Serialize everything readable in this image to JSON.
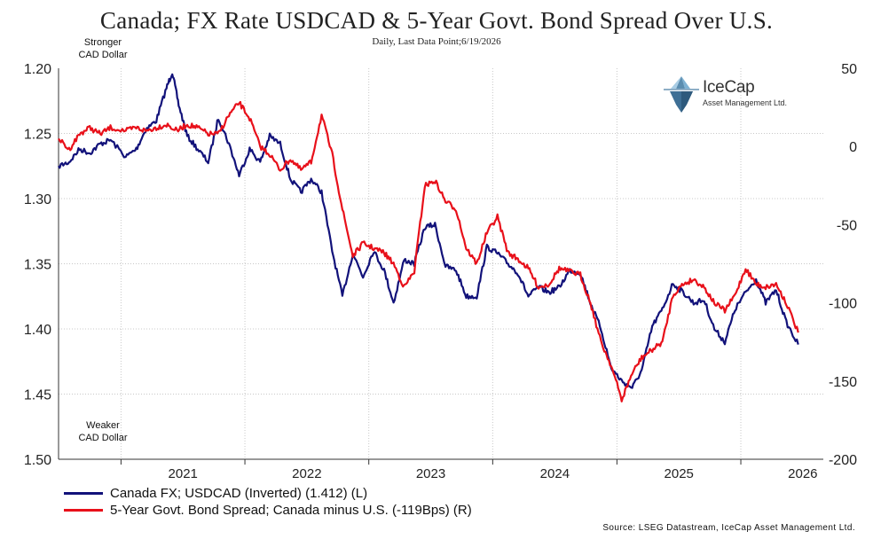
{
  "chart_data": {
    "type": "line",
    "title": "Canada; FX Rate USDCAD & 5-Year Govt. Bond Spread Over U.S.",
    "subtitle": "Daily, Last Data Point;6/19/2026",
    "annotations": {
      "top": [
        "Stronger",
        "CAD Dollar"
      ],
      "bottom": [
        "Weaker",
        "CAD Dollar"
      ]
    },
    "x_range": [
      "2020-07-01",
      "2026-09-01"
    ],
    "x_ticks": [
      {
        "label": "2021",
        "date": "2021-01-01"
      },
      {
        "label": "2022",
        "date": "2022-01-01"
      },
      {
        "label": "2023",
        "date": "2023-01-01"
      },
      {
        "label": "2024",
        "date": "2024-01-01"
      },
      {
        "label": "2025",
        "date": "2025-01-01"
      },
      {
        "label": "2026",
        "date": "2026-01-01"
      }
    ],
    "y_left": {
      "ticks": [
        "1.20",
        "1.25",
        "1.30",
        "1.35",
        "1.40",
        "1.45",
        "1.50"
      ],
      "range": [
        1.2,
        1.5
      ],
      "inverted": true
    },
    "y_right": {
      "ticks": [
        "50",
        "0",
        "-50",
        "-100",
        "-150",
        "-200"
      ],
      "range": [
        -200,
        50
      ]
    },
    "grid": true,
    "legend_placement": "bottom-left",
    "series": [
      {
        "name": "Canada FX; USDCAD (Inverted) (1.412) (L)",
        "color": "#12127a",
        "axis": "left",
        "points": [
          [
            "2020-07-01",
            1.275
          ],
          [
            "2020-08-01",
            1.272
          ],
          [
            "2020-09-01",
            1.262
          ],
          [
            "2020-10-01",
            1.265
          ],
          [
            "2020-11-01",
            1.258
          ],
          [
            "2020-12-01",
            1.255
          ],
          [
            "2021-01-15",
            1.268
          ],
          [
            "2021-02-15",
            1.262
          ],
          [
            "2021-03-15",
            1.247
          ],
          [
            "2021-04-15",
            1.24
          ],
          [
            "2021-05-15",
            1.215
          ],
          [
            "2021-06-01",
            1.203
          ],
          [
            "2021-06-20",
            1.228
          ],
          [
            "2021-07-15",
            1.252
          ],
          [
            "2021-08-15",
            1.262
          ],
          [
            "2021-09-15",
            1.272
          ],
          [
            "2021-10-15",
            1.238
          ],
          [
            "2021-11-15",
            1.258
          ],
          [
            "2021-12-15",
            1.282
          ],
          [
            "2022-01-15",
            1.262
          ],
          [
            "2022-02-15",
            1.272
          ],
          [
            "2022-03-15",
            1.252
          ],
          [
            "2022-04-15",
            1.258
          ],
          [
            "2022-05-15",
            1.285
          ],
          [
            "2022-06-15",
            1.295
          ],
          [
            "2022-07-15",
            1.285
          ],
          [
            "2022-08-15",
            1.295
          ],
          [
            "2022-09-15",
            1.34
          ],
          [
            "2022-10-15",
            1.375
          ],
          [
            "2022-11-15",
            1.342
          ],
          [
            "2022-12-15",
            1.36
          ],
          [
            "2023-01-15",
            1.34
          ],
          [
            "2023-02-15",
            1.355
          ],
          [
            "2023-03-15",
            1.38
          ],
          [
            "2023-04-15",
            1.347
          ],
          [
            "2023-05-15",
            1.35
          ],
          [
            "2023-06-15",
            1.322
          ],
          [
            "2023-07-15",
            1.32
          ],
          [
            "2023-08-15",
            1.352
          ],
          [
            "2023-09-15",
            1.355
          ],
          [
            "2023-10-15",
            1.375
          ],
          [
            "2023-11-15",
            1.375
          ],
          [
            "2023-12-15",
            1.337
          ],
          [
            "2024-01-15",
            1.342
          ],
          [
            "2024-02-15",
            1.35
          ],
          [
            "2024-03-15",
            1.357
          ],
          [
            "2024-04-15",
            1.375
          ],
          [
            "2024-05-15",
            1.368
          ],
          [
            "2024-06-15",
            1.372
          ],
          [
            "2024-07-15",
            1.368
          ],
          [
            "2024-08-15",
            1.355
          ],
          [
            "2024-09-15",
            1.357
          ],
          [
            "2024-10-15",
            1.38
          ],
          [
            "2024-11-15",
            1.4
          ],
          [
            "2024-12-15",
            1.43
          ],
          [
            "2025-01-15",
            1.44
          ],
          [
            "2025-02-15",
            1.445
          ],
          [
            "2025-03-15",
            1.432
          ],
          [
            "2025-04-15",
            1.398
          ],
          [
            "2025-05-15",
            1.385
          ],
          [
            "2025-06-15",
            1.365
          ],
          [
            "2025-07-15",
            1.372
          ],
          [
            "2025-08-15",
            1.38
          ],
          [
            "2025-09-15",
            1.378
          ],
          [
            "2025-10-15",
            1.4
          ],
          [
            "2025-11-15",
            1.41
          ],
          [
            "2025-12-15",
            1.385
          ],
          [
            "2026-01-15",
            1.372
          ],
          [
            "2026-02-15",
            1.362
          ],
          [
            "2026-03-15",
            1.38
          ],
          [
            "2026-04-15",
            1.37
          ],
          [
            "2026-05-15",
            1.395
          ],
          [
            "2026-06-19",
            1.412
          ]
        ]
      },
      {
        "name": "5-Year Govt. Bond Spread; Canada minus U.S. (-119Bps) (R)",
        "color": "#e8101a",
        "axis": "right",
        "points": [
          [
            "2020-07-01",
            5
          ],
          [
            "2020-08-01",
            -2
          ],
          [
            "2020-09-01",
            8
          ],
          [
            "2020-10-01",
            12
          ],
          [
            "2020-11-01",
            8
          ],
          [
            "2020-12-01",
            12
          ],
          [
            "2021-01-15",
            10
          ],
          [
            "2021-02-15",
            12
          ],
          [
            "2021-03-15",
            10
          ],
          [
            "2021-04-15",
            12
          ],
          [
            "2021-05-15",
            14
          ],
          [
            "2021-06-15",
            10
          ],
          [
            "2021-07-15",
            14
          ],
          [
            "2021-08-15",
            12
          ],
          [
            "2021-09-15",
            8
          ],
          [
            "2021-10-15",
            8
          ],
          [
            "2021-11-15",
            20
          ],
          [
            "2021-12-15",
            28
          ],
          [
            "2022-01-15",
            18
          ],
          [
            "2022-02-15",
            0
          ],
          [
            "2022-03-15",
            -5
          ],
          [
            "2022-04-15",
            -15
          ],
          [
            "2022-05-15",
            -8
          ],
          [
            "2022-06-15",
            -15
          ],
          [
            "2022-07-15",
            -10
          ],
          [
            "2022-08-15",
            20
          ],
          [
            "2022-09-15",
            -5
          ],
          [
            "2022-10-15",
            -40
          ],
          [
            "2022-11-15",
            -70
          ],
          [
            "2022-12-15",
            -62
          ],
          [
            "2023-01-15",
            -65
          ],
          [
            "2023-02-15",
            -68
          ],
          [
            "2023-03-15",
            -75
          ],
          [
            "2023-04-15",
            -90
          ],
          [
            "2023-05-15",
            -80
          ],
          [
            "2023-06-15",
            -25
          ],
          [
            "2023-07-15",
            -22
          ],
          [
            "2023-08-15",
            -35
          ],
          [
            "2023-09-15",
            -40
          ],
          [
            "2023-10-15",
            -65
          ],
          [
            "2023-11-15",
            -75
          ],
          [
            "2023-12-15",
            -55
          ],
          [
            "2024-01-15",
            -45
          ],
          [
            "2024-02-15",
            -68
          ],
          [
            "2024-03-15",
            -72
          ],
          [
            "2024-04-15",
            -78
          ],
          [
            "2024-05-15",
            -90
          ],
          [
            "2024-06-15",
            -88
          ],
          [
            "2024-07-15",
            -78
          ],
          [
            "2024-08-15",
            -80
          ],
          [
            "2024-09-15",
            -82
          ],
          [
            "2024-10-15",
            -100
          ],
          [
            "2024-11-15",
            -125
          ],
          [
            "2024-12-15",
            -140
          ],
          [
            "2025-01-15",
            -162
          ],
          [
            "2025-02-15",
            -145
          ],
          [
            "2025-03-15",
            -135
          ],
          [
            "2025-04-15",
            -130
          ],
          [
            "2025-05-15",
            -125
          ],
          [
            "2025-06-15",
            -95
          ],
          [
            "2025-07-15",
            -88
          ],
          [
            "2025-08-15",
            -85
          ],
          [
            "2025-09-15",
            -90
          ],
          [
            "2025-10-15",
            -100
          ],
          [
            "2025-11-15",
            -105
          ],
          [
            "2025-12-15",
            -95
          ],
          [
            "2026-01-15",
            -78
          ],
          [
            "2026-02-15",
            -88
          ],
          [
            "2026-03-15",
            -90
          ],
          [
            "2026-04-15",
            -88
          ],
          [
            "2026-05-15",
            -100
          ],
          [
            "2026-06-19",
            -119
          ]
        ]
      }
    ]
  },
  "logo": {
    "name": "IceCap",
    "sub": "Asset Management Ltd."
  },
  "legend": {
    "fx_label": "Canada FX; USDCAD (Inverted) (1.412) (L)",
    "spread_label": "5-Year Govt. Bond Spread; Canada minus U.S. (-119Bps) (R)"
  },
  "source": "Source: LSEG Datastream, IceCap Asset Management Ltd.",
  "colors": {
    "fx": "#12127a",
    "spread": "#e8101a",
    "grid": "#c8c8c8",
    "logo": "#5b8db0"
  }
}
